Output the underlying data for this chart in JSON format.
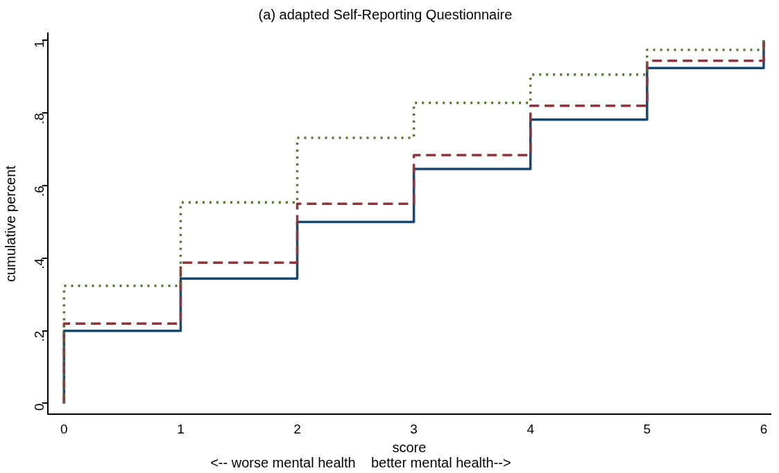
{
  "chart_data": {
    "type": "step",
    "title": "(a) adapted Self-Reporting Questionnaire",
    "xlabel": "score",
    "ylabel": "cumulative percent",
    "annotations": [
      "<-- worse mental health    better mental health-->"
    ],
    "x": [
      0,
      0,
      1,
      2,
      3,
      4,
      5,
      6
    ],
    "series": [
      {
        "color": "#1a476f",
        "line_style": "solid",
        "values": [
          0,
          0.2,
          0.344,
          0.5,
          0.646,
          0.782,
          0.924,
          1
        ]
      },
      {
        "color": "#90353b",
        "line_style": "dashed",
        "values": [
          0,
          0.22,
          0.388,
          0.55,
          0.684,
          0.82,
          0.944,
          1
        ]
      },
      {
        "color": "#55752f",
        "line_style": "dotted",
        "values": [
          0,
          0.324,
          0.554,
          0.732,
          0.828,
          0.906,
          0.974,
          1
        ]
      }
    ],
    "xlim": [
      -0.14,
      6.06
    ],
    "xticks": [
      0,
      1,
      2,
      3,
      4,
      5,
      6
    ],
    "ylim": [
      -0.03,
      1.02
    ],
    "yticks": [
      0,
      {
        "value": 0.2,
        "label": ".2"
      },
      {
        "value": 0.4,
        "label": ".4"
      },
      {
        "value": 0.6,
        "label": ".6"
      },
      {
        "value": 0.8,
        "label": ".8"
      },
      1
    ],
    "grid": false,
    "legend": false
  }
}
